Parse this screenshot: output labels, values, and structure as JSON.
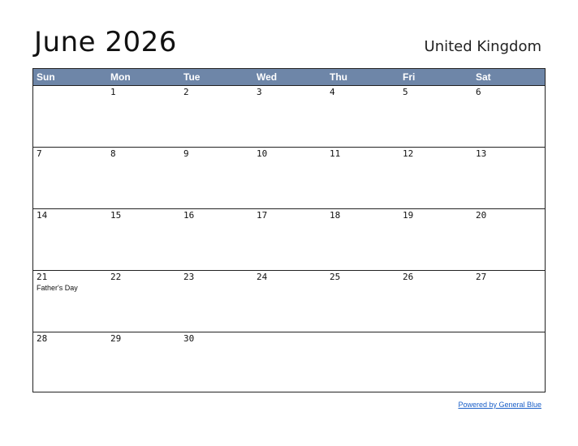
{
  "header": {
    "title": "June 2026",
    "country": "United Kingdom"
  },
  "colors": {
    "header_bar": "#6e86a8",
    "grid_line": "#222222",
    "link": "#1a5fc8"
  },
  "weekdays": [
    "Sun",
    "Mon",
    "Tue",
    "Wed",
    "Thu",
    "Fri",
    "Sat"
  ],
  "weeks": [
    [
      {
        "day": ""
      },
      {
        "day": "1"
      },
      {
        "day": "2"
      },
      {
        "day": "3"
      },
      {
        "day": "4"
      },
      {
        "day": "5"
      },
      {
        "day": "6"
      }
    ],
    [
      {
        "day": "7"
      },
      {
        "day": "8"
      },
      {
        "day": "9"
      },
      {
        "day": "10"
      },
      {
        "day": "11"
      },
      {
        "day": "12"
      },
      {
        "day": "13"
      }
    ],
    [
      {
        "day": "14"
      },
      {
        "day": "15"
      },
      {
        "day": "16"
      },
      {
        "day": "17"
      },
      {
        "day": "18"
      },
      {
        "day": "19"
      },
      {
        "day": "20"
      }
    ],
    [
      {
        "day": "21",
        "event": "Father's Day"
      },
      {
        "day": "22"
      },
      {
        "day": "23"
      },
      {
        "day": "24"
      },
      {
        "day": "25"
      },
      {
        "day": "26"
      },
      {
        "day": "27"
      }
    ],
    [
      {
        "day": "28"
      },
      {
        "day": "29"
      },
      {
        "day": "30"
      },
      {
        "day": ""
      },
      {
        "day": ""
      },
      {
        "day": ""
      },
      {
        "day": ""
      }
    ]
  ],
  "footer": {
    "link_text": "Powered by General Blue"
  }
}
